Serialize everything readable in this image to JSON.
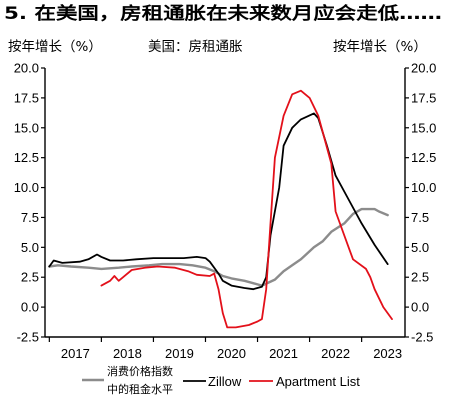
{
  "chart_data": {
    "type": "line",
    "title": "5. 在美国，房租通胀在未来数月应会走低……",
    "subtitle": "美国：房租通胀",
    "ylabel": "按年增长（%）",
    "ylabel_right": "按年增长（%）",
    "ylim": [
      -2.5,
      20.0
    ],
    "yticks": [
      "20.0",
      "17.5",
      "15.0",
      "12.5",
      "10.0",
      "7.5",
      "5.0",
      "2.5",
      "0.0",
      "-2.5"
    ],
    "xlim": [
      "2016-12",
      "2023-11"
    ],
    "xticks": [
      "2017",
      "2018",
      "2019",
      "2020",
      "2021",
      "2022",
      "2023"
    ],
    "grid": false,
    "legend_position": "bottom",
    "series": [
      {
        "legend_lines": [
          "消费价格指数",
          "中的租金水平"
        ],
        "color": "#8c8c8c",
        "points": [
          [
            "2017-01",
            3.4
          ],
          [
            "2017-03",
            3.5
          ],
          [
            "2017-06",
            3.4
          ],
          [
            "2017-10",
            3.3
          ],
          [
            "2018-01",
            3.2
          ],
          [
            "2018-05",
            3.3
          ],
          [
            "2018-08",
            3.4
          ],
          [
            "2018-12",
            3.5
          ],
          [
            "2019-03",
            3.6
          ],
          [
            "2019-07",
            3.6
          ],
          [
            "2019-10",
            3.5
          ],
          [
            "2020-01",
            3.3
          ],
          [
            "2020-03",
            3.0
          ],
          [
            "2020-05",
            2.6
          ],
          [
            "2020-07",
            2.4
          ],
          [
            "2020-10",
            2.2
          ],
          [
            "2020-12",
            2.0
          ],
          [
            "2021-02",
            1.8
          ],
          [
            "2021-05",
            2.3
          ],
          [
            "2021-07",
            3.0
          ],
          [
            "2021-09",
            3.5
          ],
          [
            "2021-11",
            4.0
          ],
          [
            "2022-02",
            5.0
          ],
          [
            "2022-04",
            5.5
          ],
          [
            "2022-06",
            6.3
          ],
          [
            "2022-09",
            7.0
          ],
          [
            "2022-11",
            7.8
          ],
          [
            "2023-01",
            8.2
          ],
          [
            "2023-04",
            8.2
          ],
          [
            "2023-05",
            8.0
          ],
          [
            "2023-07",
            7.7
          ]
        ]
      },
      {
        "legend_lines": [
          "Zillow"
        ],
        "color": "#000000",
        "points": [
          [
            "2017-01",
            3.4
          ],
          [
            "2017-02",
            3.9
          ],
          [
            "2017-04",
            3.7
          ],
          [
            "2017-08",
            3.8
          ],
          [
            "2017-10",
            4.0
          ],
          [
            "2017-12",
            4.4
          ],
          [
            "2018-01",
            4.2
          ],
          [
            "2018-03",
            3.9
          ],
          [
            "2018-06",
            3.9
          ],
          [
            "2018-09",
            4.0
          ],
          [
            "2019-01",
            4.1
          ],
          [
            "2019-04",
            4.1
          ],
          [
            "2019-08",
            4.1
          ],
          [
            "2019-11",
            4.2
          ],
          [
            "2020-01",
            4.1
          ],
          [
            "2020-02",
            3.8
          ],
          [
            "2020-04",
            2.8
          ],
          [
            "2020-05",
            2.2
          ],
          [
            "2020-07",
            1.8
          ],
          [
            "2020-10",
            1.6
          ],
          [
            "2020-12",
            1.5
          ],
          [
            "2021-02",
            1.7
          ],
          [
            "2021-03",
            2.5
          ],
          [
            "2021-04",
            6.0
          ],
          [
            "2021-06",
            10.0
          ],
          [
            "2021-07",
            13.5
          ],
          [
            "2021-09",
            15.0
          ],
          [
            "2021-11",
            15.7
          ],
          [
            "2022-02",
            16.2
          ],
          [
            "2022-03",
            15.8
          ],
          [
            "2022-05",
            13.5
          ],
          [
            "2022-07",
            11.0
          ],
          [
            "2022-10",
            9.0
          ],
          [
            "2023-01",
            7.0
          ],
          [
            "2023-04",
            5.2
          ],
          [
            "2023-07",
            3.6
          ]
        ]
      },
      {
        "legend_lines": [
          "Apartment List"
        ],
        "color": "#e3101a",
        "points": [
          [
            "2018-01",
            1.8
          ],
          [
            "2018-03",
            2.2
          ],
          [
            "2018-04",
            2.6
          ],
          [
            "2018-05",
            2.2
          ],
          [
            "2018-06",
            2.5
          ],
          [
            "2018-08",
            3.1
          ],
          [
            "2018-11",
            3.3
          ],
          [
            "2019-02",
            3.4
          ],
          [
            "2019-06",
            3.3
          ],
          [
            "2019-09",
            3.0
          ],
          [
            "2019-11",
            2.7
          ],
          [
            "2020-02",
            2.6
          ],
          [
            "2020-03",
            2.8
          ],
          [
            "2020-04",
            1.5
          ],
          [
            "2020-05",
            -0.5
          ],
          [
            "2020-06",
            -1.7
          ],
          [
            "2020-08",
            -1.7
          ],
          [
            "2020-11",
            -1.5
          ],
          [
            "2021-01",
            -1.2
          ],
          [
            "2021-02",
            -1.0
          ],
          [
            "2021-03",
            1.5
          ],
          [
            "2021-04",
            7.0
          ],
          [
            "2021-05",
            12.5
          ],
          [
            "2021-07",
            16.0
          ],
          [
            "2021-09",
            17.8
          ],
          [
            "2021-11",
            18.1
          ],
          [
            "2022-01",
            17.5
          ],
          [
            "2022-03",
            16.0
          ],
          [
            "2022-06",
            12.0
          ],
          [
            "2022-07",
            8.0
          ],
          [
            "2022-10",
            5.0
          ],
          [
            "2022-11",
            4.0
          ],
          [
            "2023-02",
            3.2
          ],
          [
            "2023-03",
            2.5
          ],
          [
            "2023-04",
            1.5
          ],
          [
            "2023-06",
            0.0
          ],
          [
            "2023-08",
            -1.0
          ]
        ]
      }
    ]
  }
}
